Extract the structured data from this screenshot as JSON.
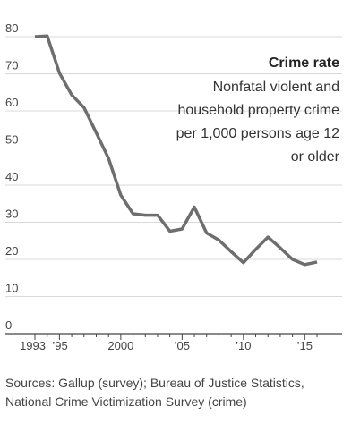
{
  "chart_data": {
    "type": "line",
    "title": "Crime rate",
    "subtitle_lines": [
      "Nonfatal violent and",
      "household property crime",
      "per 1,000 persons age 12",
      "or older"
    ],
    "xlabel": "",
    "ylabel": "",
    "x_range": [
      1993,
      2016
    ],
    "ylim": [
      0,
      80
    ],
    "y_ticks": [
      0,
      10,
      20,
      30,
      40,
      50,
      60,
      70,
      80
    ],
    "x_ticks": [
      {
        "value": 1993,
        "label": "1993"
      },
      {
        "value": 1995,
        "label": "’95"
      },
      {
        "value": 2000,
        "label": "2000"
      },
      {
        "value": 2005,
        "label": "’05"
      },
      {
        "value": 2010,
        "label": "’10"
      },
      {
        "value": 2015,
        "label": "’15"
      }
    ],
    "grid": "horizontal",
    "line_color": "#6e6e6e",
    "series": [
      {
        "x": [
          1993,
          1994,
          1995,
          1996,
          1997,
          1998,
          1999,
          2000,
          2001,
          2002,
          2003,
          2004,
          2005,
          2006,
          2007,
          2008,
          2009,
          2010,
          2011,
          2012,
          2013,
          2014,
          2015,
          2016
        ],
        "values": [
          80,
          80.2,
          70.2,
          64.3,
          60.9,
          54.1,
          47.2,
          37.3,
          32.3,
          31.9,
          31.9,
          27.6,
          28.2,
          34.1,
          27.1,
          25.2,
          22.1,
          19.1,
          22.7,
          26.0,
          23.1,
          20.0,
          18.6,
          19.3
        ]
      }
    ]
  },
  "sources": {
    "line1": "Sources: Gallup (survey); Bureau of Justice Statistics,",
    "line2": "National Crime Victimization Survey (crime)"
  }
}
